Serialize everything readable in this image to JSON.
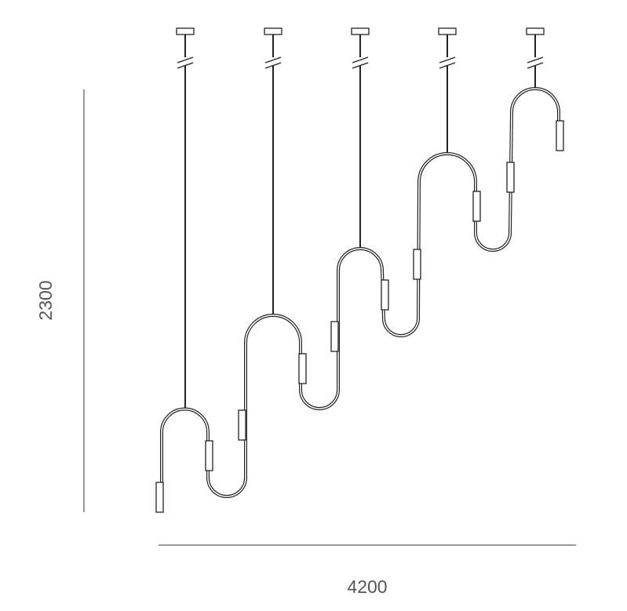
{
  "dimensions": {
    "height_label": "2300",
    "width_label": "4200"
  }
}
